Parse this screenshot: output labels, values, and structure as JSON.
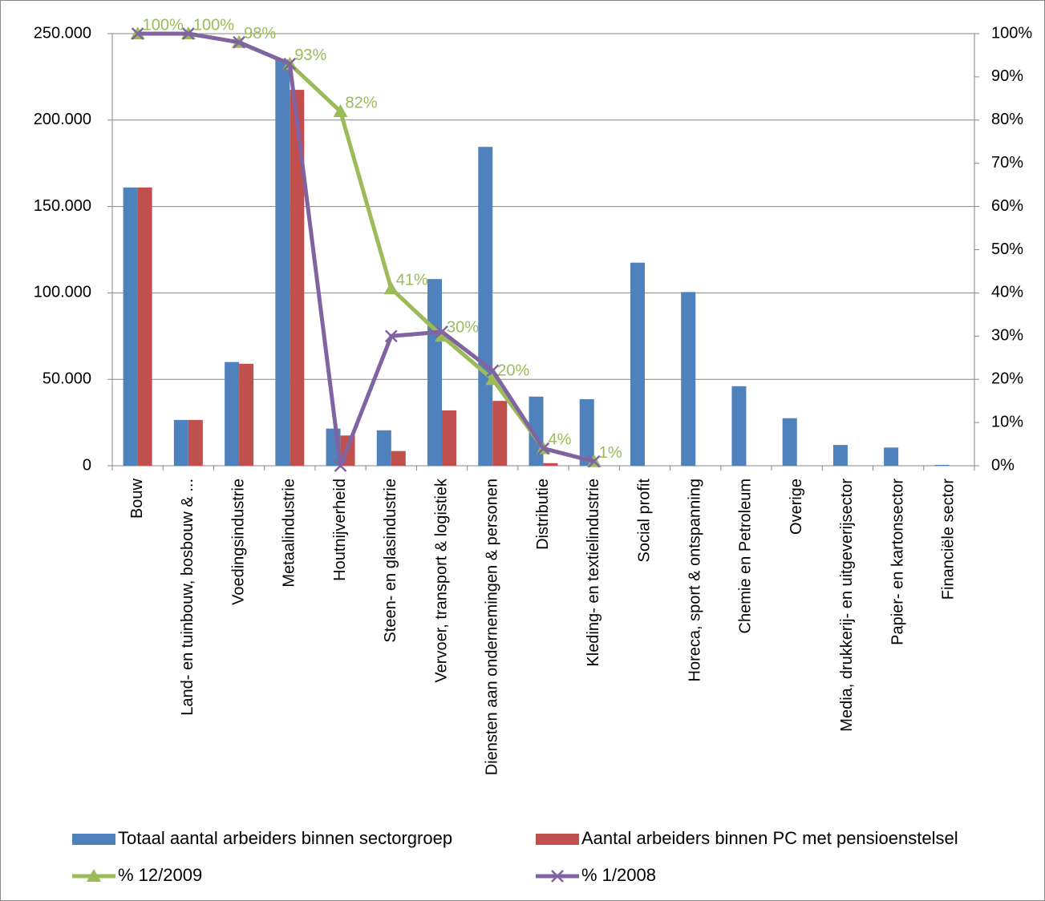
{
  "chart_data": {
    "type": "bar",
    "categories": [
      "Bouw",
      "Land- en tuinbouw, bosbouw & ...",
      "Voedingsindustrie",
      "Metaalindustrie",
      "Houtnijverheid",
      "Steen- en glasindustrie",
      "Vervoer, transport & logistiek",
      "Diensten aan ondernemingen & personen",
      "Distributie",
      "Kleding- en textielindustrie",
      "Social profit",
      "Horeca, sport & ontspanning",
      "Chemie en Petroleum",
      "Overige",
      "Media, drukkerij- en uitgeverijsector",
      "Papier- en kartonsector",
      "Financiële sector"
    ],
    "series": [
      {
        "name": "Totaal aantal arbeiders binnen sectorgroep",
        "color": "#4f81bd",
        "type": "bar",
        "values": [
          161000,
          26500,
          60000,
          235000,
          21500,
          20500,
          108000,
          184500,
          40000,
          38500,
          117500,
          100500,
          46000,
          27500,
          12000,
          10500,
          500
        ]
      },
      {
        "name": "Aantal arbeiders binnen PC met pensioenstelsel",
        "color": "#c0504d",
        "type": "bar",
        "values": [
          161000,
          26500,
          59000,
          217500,
          17500,
          8500,
          32000,
          37500,
          1500,
          null,
          null,
          null,
          null,
          null,
          null,
          null,
          null
        ]
      },
      {
        "name": "% 12/2009",
        "color": "#9bbb59",
        "type": "line",
        "marker": "triangle",
        "axis": "y2",
        "values": [
          100,
          100,
          98,
          93,
          82,
          41,
          30,
          20,
          4,
          1,
          null,
          null,
          null,
          null,
          null,
          null,
          null
        ],
        "value_labels": [
          "100%",
          "100%",
          "98%",
          "93%",
          "82%",
          "41%",
          "30%",
          "20%",
          "4%",
          "1%",
          null,
          null,
          null,
          null,
          null,
          null,
          null
        ]
      },
      {
        "name": "% 1/2008",
        "color": "#8064a2",
        "type": "line",
        "marker": "x",
        "axis": "y2",
        "values": [
          100,
          100,
          98,
          93,
          0,
          30,
          31,
          22,
          4,
          1,
          null,
          null,
          null,
          null,
          null,
          null,
          null
        ]
      }
    ],
    "ylim": [
      0,
      250000
    ],
    "yticks": [
      0,
      {
        "value": 50000,
        "label": "50.000"
      },
      {
        "value": 100000,
        "label": "100.000"
      },
      {
        "value": 150000,
        "label": "150.000"
      },
      {
        "value": 200000,
        "label": "200.000"
      },
      {
        "value": 250000,
        "label": "250.000"
      }
    ],
    "y2lim": [
      0,
      100
    ],
    "y2ticks": [
      {
        "value": 0,
        "label": "0%"
      },
      {
        "value": 10,
        "label": "10%"
      },
      {
        "value": 20,
        "label": "20%"
      },
      {
        "value": 30,
        "label": "30%"
      },
      {
        "value": 40,
        "label": "40%"
      },
      {
        "value": 50,
        "label": "50%"
      },
      {
        "value": 60,
        "label": "60%"
      },
      {
        "value": 70,
        "label": "70%"
      },
      {
        "value": 80,
        "label": "80%"
      },
      {
        "value": 90,
        "label": "90%"
      },
      {
        "value": 100,
        "label": "100%"
      }
    ],
    "grid": true,
    "legend": "bottom"
  }
}
